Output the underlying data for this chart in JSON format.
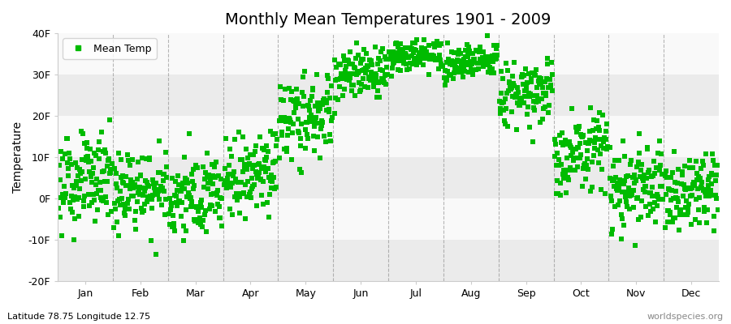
{
  "title": "Monthly Mean Temperatures 1901 - 2009",
  "ylabel": "Temperature",
  "ylim": [
    -20,
    40
  ],
  "yticks": [
    -20,
    -10,
    0,
    10,
    20,
    30,
    40
  ],
  "ytick_labels": [
    "-20F",
    "-10F",
    "0F",
    "10F",
    "20F",
    "30F",
    "40F"
  ],
  "months": [
    "Jan",
    "Feb",
    "Mar",
    "Apr",
    "May",
    "Jun",
    "Jul",
    "Aug",
    "Sep",
    "Oct",
    "Nov",
    "Dec"
  ],
  "dot_color": "#00bb00",
  "background_color": "#f4f4f4",
  "band_colors": [
    "#ebebeb",
    "#f9f9f9"
  ],
  "legend_label": "Mean Temp",
  "footnote_left": "Latitude 78.75 Longitude 12.75",
  "footnote_right": "worldspecies.org",
  "monthly_means": [
    3,
    1,
    0,
    5,
    18,
    29,
    34,
    33,
    25,
    10,
    1,
    0
  ],
  "monthly_stds": [
    5,
    5,
    5,
    5,
    5,
    3,
    2,
    2,
    4,
    5,
    5,
    5
  ],
  "monthly_trend": [
    0.03,
    0.02,
    0.02,
    0.03,
    0.03,
    0.02,
    0.01,
    0.01,
    0.02,
    0.03,
    0.03,
    0.03
  ],
  "n_years": 109,
  "start_year": 1901,
  "marker_size": 14,
  "title_fontsize": 14,
  "axis_fontsize": 10,
  "tick_fontsize": 9,
  "dashed_color": "#888888",
  "figsize": [
    9.0,
    4.0
  ],
  "dpi": 100
}
